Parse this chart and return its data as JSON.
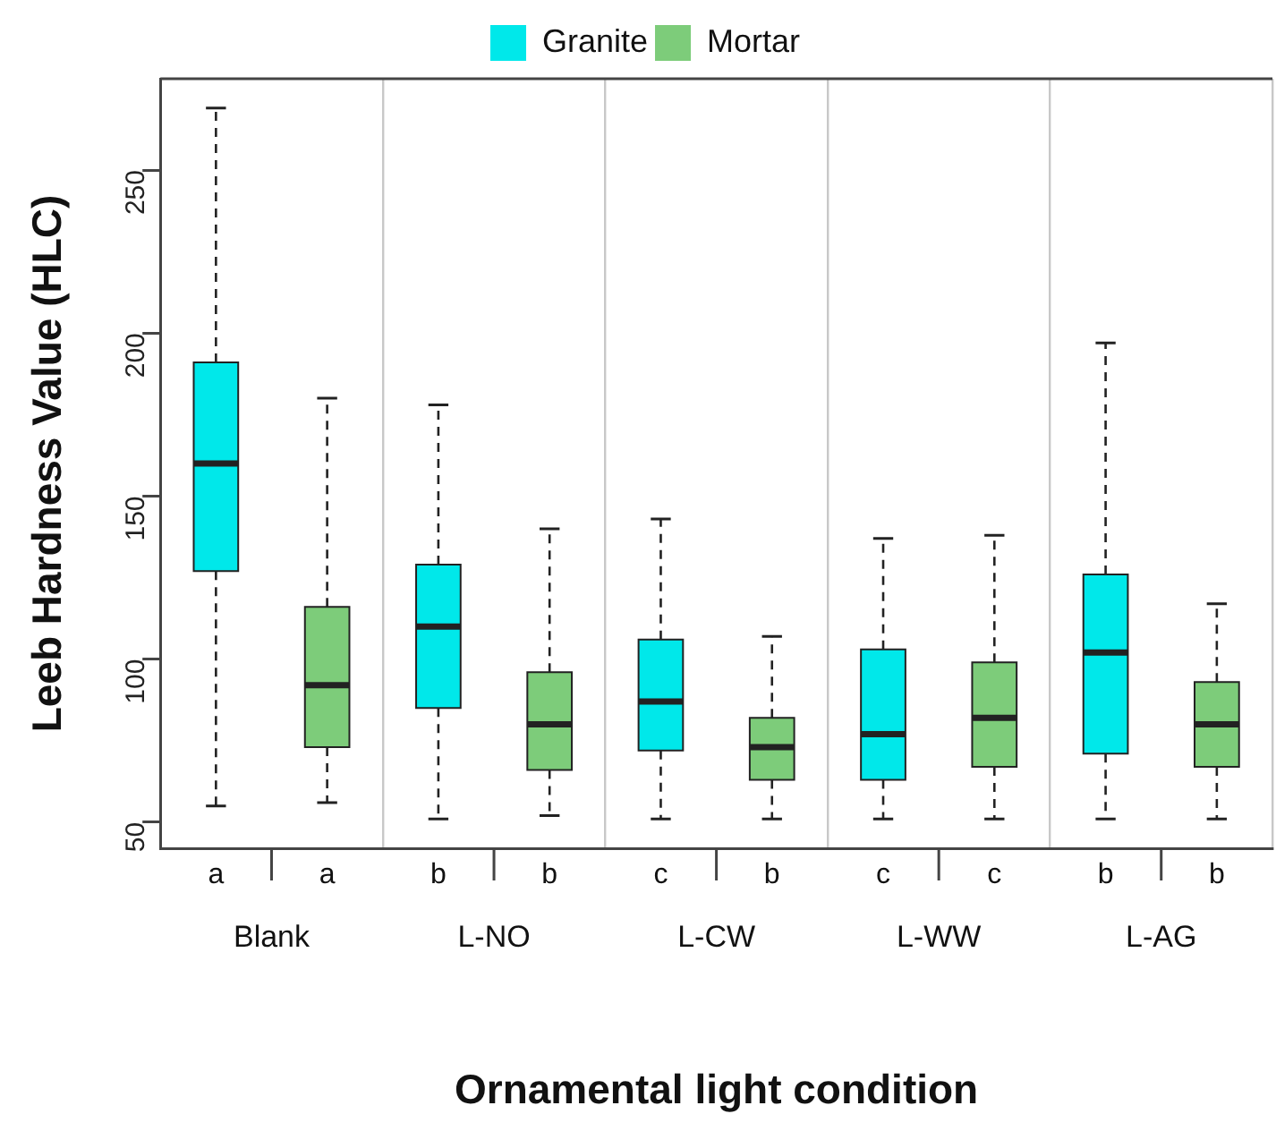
{
  "chart_data": {
    "type": "box",
    "xlabel": "Ornamental light condition",
    "ylabel": "Leeb Hardness Value (HLC)",
    "categories": [
      "Blank",
      "L-NO",
      "L-CW",
      "L-WW",
      "L-AG"
    ],
    "series": [
      {
        "name": "Granite",
        "color": "#00e8ea",
        "boxes": [
          {
            "low": 55,
            "q1": 127,
            "median": 160,
            "q3": 191,
            "high": 269
          },
          {
            "low": 51,
            "q1": 85,
            "median": 110,
            "q3": 129,
            "high": 178
          },
          {
            "low": 51,
            "q1": 72,
            "median": 87,
            "q3": 106,
            "high": 143
          },
          {
            "low": 51,
            "q1": 63,
            "median": 77,
            "q3": 103,
            "high": 137
          },
          {
            "low": 51,
            "q1": 71,
            "median": 102,
            "q3": 126,
            "high": 197
          }
        ]
      },
      {
        "name": "Mortar",
        "color": "#7dcc7a",
        "boxes": [
          {
            "low": 56,
            "q1": 73,
            "median": 92,
            "q3": 116,
            "high": 180
          },
          {
            "low": 52,
            "q1": 66,
            "median": 80,
            "q3": 96,
            "high": 140
          },
          {
            "low": 51,
            "q1": 63,
            "median": 73,
            "q3": 82,
            "high": 107
          },
          {
            "low": 51,
            "q1": 67,
            "median": 82,
            "q3": 99,
            "high": 138
          },
          {
            "low": 51,
            "q1": 67,
            "median": 80,
            "q3": 93,
            "high": 117
          }
        ]
      }
    ],
    "annotations": [
      "a",
      "a",
      "b",
      "b",
      "c",
      "b",
      "c",
      "c",
      "b",
      "b"
    ],
    "ylim": [
      42,
      278
    ],
    "yticks": [
      50,
      100,
      150,
      200,
      250
    ],
    "grid": "x",
    "legend": "top"
  }
}
